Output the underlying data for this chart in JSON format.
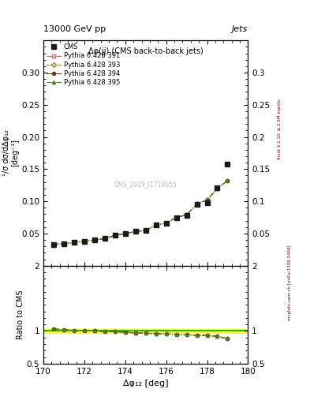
{
  "title_top": "13000 GeV pp",
  "title_right": "Jets",
  "plot_title": "Δφ(jj) (CMS back-to-back jets)",
  "xlabel": "Δφ₁₂ [deg]",
  "ylabel_main": "¹/σ dσ/dΔφ₁₂",
  "ylabel_main2": "[deg⁻¹]",
  "ylabel_ratio": "Ratio to CMS",
  "watermark": "CMS_2019_I1719955",
  "right_label": "mcplots.cern.ch [arXiv:1306.3436]",
  "right_label2": "Rivet 3.1.10, ≥ 2.3M events",
  "xlim": [
    170,
    180
  ],
  "ylim_main": [
    0,
    0.35
  ],
  "ylim_ratio": [
    0.5,
    2.0
  ],
  "x_cms": [
    170.5,
    171.0,
    171.5,
    172.0,
    172.5,
    173.0,
    173.5,
    174.0,
    174.5,
    175.0,
    175.5,
    176.0,
    176.5,
    177.0,
    177.5,
    178.0,
    178.5,
    179.0
  ],
  "y_cms": [
    0.033,
    0.034,
    0.036,
    0.038,
    0.04,
    0.042,
    0.047,
    0.05,
    0.053,
    0.055,
    0.063,
    0.066,
    0.075,
    0.078,
    0.095,
    0.098,
    0.121,
    0.158
  ],
  "y_py391": [
    0.033,
    0.034,
    0.036,
    0.038,
    0.04,
    0.042,
    0.047,
    0.05,
    0.053,
    0.055,
    0.063,
    0.066,
    0.075,
    0.079,
    0.096,
    0.102,
    0.12,
    0.132
  ],
  "y_py393": [
    0.033,
    0.034,
    0.036,
    0.038,
    0.04,
    0.042,
    0.047,
    0.05,
    0.053,
    0.055,
    0.063,
    0.066,
    0.075,
    0.079,
    0.096,
    0.102,
    0.12,
    0.132
  ],
  "y_py394": [
    0.033,
    0.034,
    0.036,
    0.038,
    0.04,
    0.042,
    0.047,
    0.05,
    0.053,
    0.055,
    0.063,
    0.066,
    0.075,
    0.079,
    0.096,
    0.102,
    0.12,
    0.132
  ],
  "y_py395": [
    0.033,
    0.034,
    0.036,
    0.038,
    0.04,
    0.042,
    0.047,
    0.05,
    0.053,
    0.055,
    0.063,
    0.066,
    0.075,
    0.079,
    0.096,
    0.102,
    0.12,
    0.132
  ],
  "ratio_py391": [
    1.03,
    1.02,
    1.01,
    1.005,
    1.0,
    0.99,
    0.99,
    0.98,
    0.97,
    0.965,
    0.96,
    0.955,
    0.945,
    0.94,
    0.935,
    0.93,
    0.92,
    0.88
  ],
  "ratio_py393": [
    1.03,
    1.02,
    1.01,
    1.005,
    1.0,
    0.99,
    0.99,
    0.98,
    0.97,
    0.965,
    0.96,
    0.955,
    0.945,
    0.94,
    0.935,
    0.93,
    0.92,
    0.88
  ],
  "ratio_py394": [
    1.03,
    1.02,
    1.01,
    1.005,
    1.0,
    0.99,
    0.99,
    0.98,
    0.97,
    0.965,
    0.96,
    0.955,
    0.945,
    0.94,
    0.935,
    0.93,
    0.92,
    0.88
  ],
  "ratio_py395": [
    1.03,
    1.02,
    1.01,
    1.005,
    1.0,
    0.99,
    0.99,
    0.98,
    0.97,
    0.965,
    0.96,
    0.955,
    0.945,
    0.94,
    0.935,
    0.93,
    0.92,
    0.88
  ],
  "color_py391": "#c87070",
  "color_py393": "#a09030",
  "color_py394": "#604010",
  "color_py395": "#508020",
  "color_cms": "#1a1a1a",
  "yticks_main": [
    0.05,
    0.1,
    0.15,
    0.2,
    0.25,
    0.3
  ],
  "xticks": [
    170,
    172,
    174,
    176,
    178,
    180
  ]
}
